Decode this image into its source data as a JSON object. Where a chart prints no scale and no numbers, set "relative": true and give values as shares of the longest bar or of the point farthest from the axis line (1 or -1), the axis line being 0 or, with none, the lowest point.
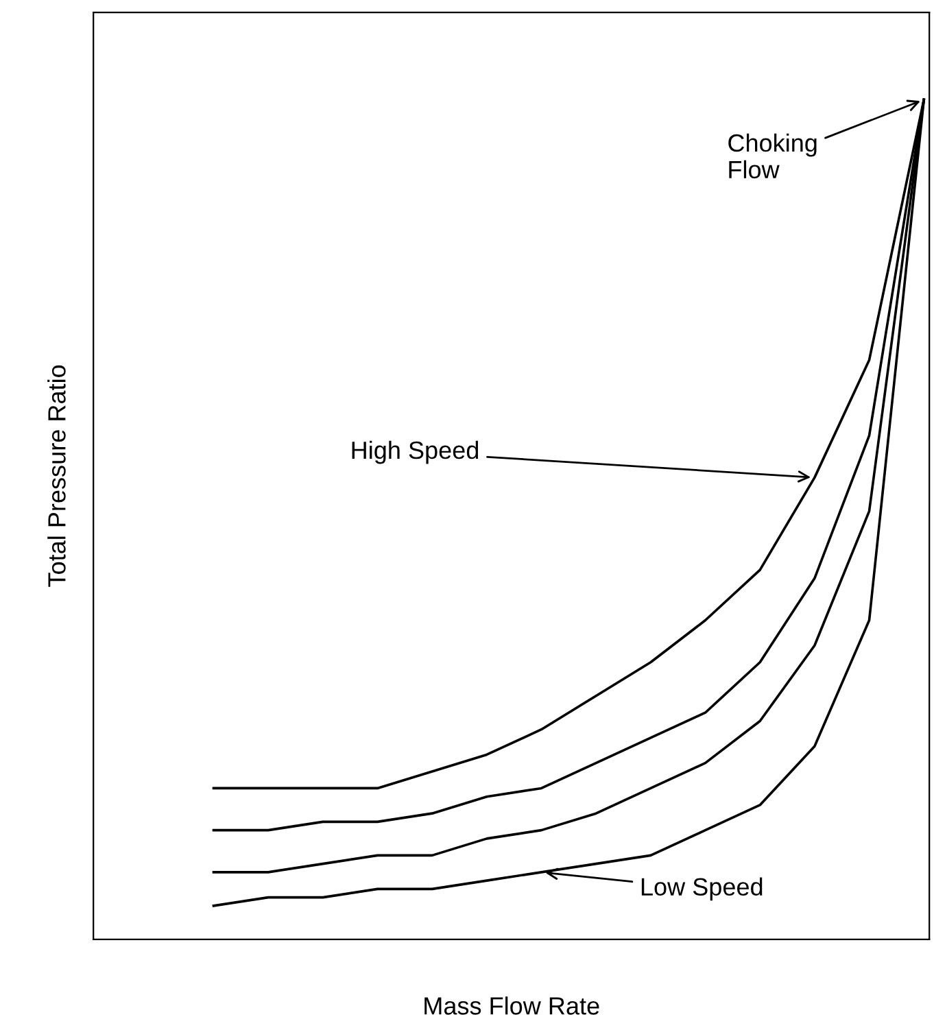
{
  "chart_data": {
    "type": "line",
    "relative": true,
    "xlabel": "Mass Flow Rate",
    "ylabel": "Total Pressure Ratio",
    "categories": [
      null,
      null,
      null,
      null,
      null,
      null,
      null,
      null,
      null,
      null,
      null,
      null,
      null,
      null
    ],
    "series": [
      {
        "color": "#000000",
        "values": [
          0.18,
          0.18,
          0.18,
          0.18,
          0.2,
          0.22,
          0.25,
          0.29,
          0.33,
          0.38,
          0.44,
          0.55,
          0.69,
          1.0
        ]
      },
      {
        "color": "#000000",
        "values": [
          0.13,
          0.13,
          0.14,
          0.14,
          0.15,
          0.17,
          0.18,
          0.21,
          0.24,
          0.27,
          0.33,
          0.43,
          0.6,
          1.0
        ]
      },
      {
        "color": "#000000",
        "values": [
          0.08,
          0.08,
          0.09,
          0.1,
          0.1,
          0.12,
          0.13,
          0.15,
          0.18,
          0.21,
          0.26,
          0.35,
          0.51,
          1.0
        ]
      },
      {
        "color": "#000000",
        "values": [
          0.04,
          0.05,
          0.05,
          0.06,
          0.06,
          0.07,
          0.08,
          0.09,
          0.1,
          0.13,
          0.16,
          0.23,
          0.38,
          1.0
        ]
      }
    ],
    "annotations": [
      "Choking\nFlow",
      "High Speed",
      "Low Speed"
    ],
    "legend": false,
    "marker": "none",
    "line_style": "solid"
  }
}
